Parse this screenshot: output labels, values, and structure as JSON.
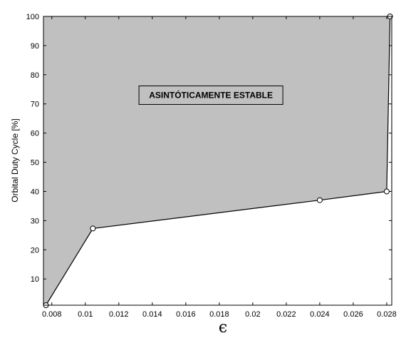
{
  "chart_data": {
    "type": "area",
    "title": "",
    "xlabel": "ϵ",
    "ylabel": "Orbital Duty Cycle [%]",
    "xlim": [
      0.0075,
      0.0283
    ],
    "ylim": [
      1,
      100
    ],
    "x_ticks": [
      "0.008",
      "0.01",
      "0.012",
      "0.014",
      "0.016",
      "0.018",
      "0.02",
      "0.022",
      "0.024",
      "0.026",
      "0.028"
    ],
    "y_ticks": [
      "10",
      "20",
      "30",
      "40",
      "50",
      "60",
      "70",
      "80",
      "90",
      "100"
    ],
    "grid": false,
    "colors": {
      "region_fill": "#c0c0c0",
      "line": "#000000",
      "marker_face": "#ffffff",
      "background": "#ffffff"
    },
    "series": [
      {
        "x": [
          0.00765,
          0.01045,
          0.024,
          0.028,
          0.0282
        ],
        "y": [
          1,
          27.3,
          37,
          40,
          100
        ]
      }
    ],
    "annotations": [
      {
        "text": "ASINTÓTICAMENTE ESTABLE",
        "x": 0.0175,
        "y": 73
      }
    ]
  }
}
